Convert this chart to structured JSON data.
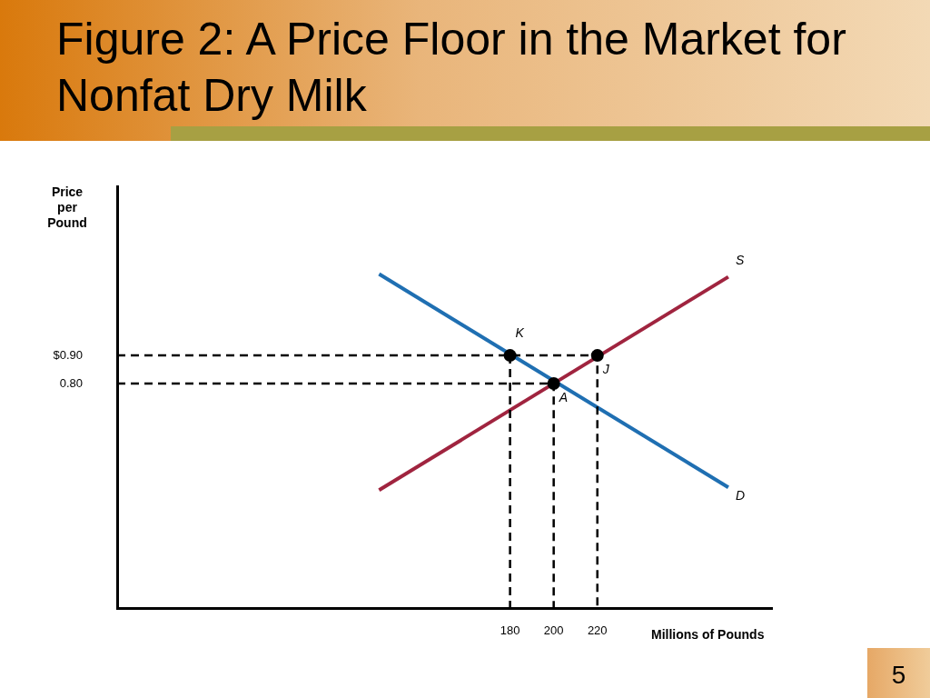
{
  "chart_data": {
    "type": "line",
    "title": "Figure 2: A Price Floor in the Market for Nonfat Dry Milk",
    "xlabel": "Millions of Pounds",
    "ylabel": "Price per Pound",
    "xlim": [
      0,
      300
    ],
    "xticks": [
      180,
      200,
      220
    ],
    "ylim": [
      0,
      1.5
    ],
    "yticks": [
      {
        "value": 0.9,
        "label": "$0.90"
      },
      {
        "value": 0.8,
        "label": "0.80"
      }
    ],
    "grid": false,
    "legend": false,
    "marker": "none",
    "series": [
      {
        "name": "D",
        "color": "#1f6fb2",
        "x": [
          120,
          280
        ],
        "values": [
          1.19,
          0.43
        ]
      },
      {
        "name": "S",
        "color": "#a0243f",
        "x": [
          120,
          280
        ],
        "values": [
          0.42,
          1.18
        ]
      },
      {
        "color": "#000000",
        "line_style": "dashed",
        "x": [
          0,
          220,
          220
        ],
        "values": [
          0.9,
          0.9,
          0
        ]
      },
      {
        "color": "#000000",
        "line_style": "dashed",
        "x": [
          180,
          180
        ],
        "values": [
          0.9,
          0
        ]
      },
      {
        "color": "#000000",
        "line_style": "dashed",
        "x": [
          0,
          200,
          200
        ],
        "values": [
          0.8,
          0.8,
          0
        ]
      },
      {
        "type": "scatter",
        "color": "#000000",
        "marker": "circle",
        "x": [
          180,
          220,
          200
        ],
        "values": [
          0.9,
          0.9,
          0.8
        ]
      }
    ],
    "annotations": [
      {
        "text": "K",
        "x": 180,
        "y": 0.9
      },
      {
        "text": "J",
        "x": 220,
        "y": 0.9
      },
      {
        "text": "A",
        "x": 200,
        "y": 0.8
      },
      "5"
    ]
  }
}
